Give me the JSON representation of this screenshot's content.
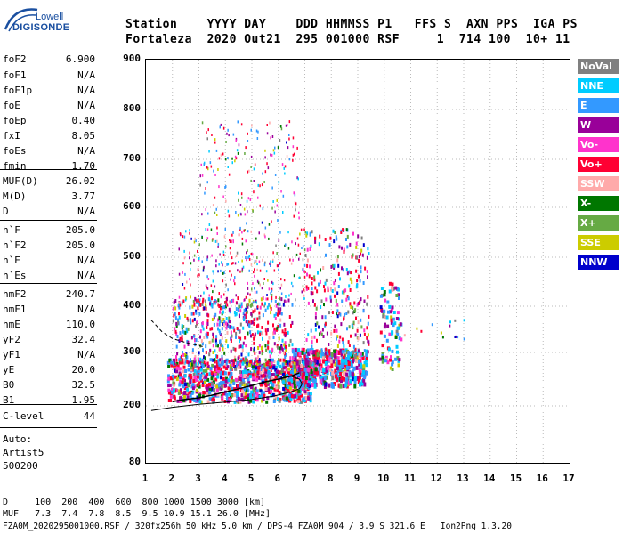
{
  "logo": {
    "top": "Lowell",
    "bottom": "DIGISONDE"
  },
  "header": {
    "labels": "Station    YYYY DAY    DDD HHMMSS P1   FFS S  AXN PPS  IGA PS",
    "values": "Fortaleza  2020 Out21  295 001000 RSF     1  714 100  10+ 11"
  },
  "params": [
    {
      "k": "foF2",
      "v": "6.900"
    },
    {
      "k": "foF1",
      "v": "N/A"
    },
    {
      "k": "foF1p",
      "v": "N/A"
    },
    {
      "k": "foE",
      "v": "N/A"
    },
    {
      "k": "foEp",
      "v": "0.40"
    },
    {
      "k": "fxI",
      "v": "8.05"
    },
    {
      "k": "foEs",
      "v": "N/A"
    },
    {
      "k": "fmin",
      "v": "1.70"
    },
    {
      "k": "MUF(D)",
      "v": "26.02"
    },
    {
      "k": "M(D)",
      "v": "3.77"
    },
    {
      "k": "D",
      "v": "N/A"
    },
    {
      "k": "h`F",
      "v": "205.0"
    },
    {
      "k": "h`F2",
      "v": "205.0"
    },
    {
      "k": "h`E",
      "v": "N/A"
    },
    {
      "k": "h`Es",
      "v": "N/A"
    },
    {
      "k": "hmF2",
      "v": "240.7"
    },
    {
      "k": "hmF1",
      "v": "N/A"
    },
    {
      "k": "hmE",
      "v": "110.0"
    },
    {
      "k": "yF2",
      "v": "32.4"
    },
    {
      "k": "yF1",
      "v": "N/A"
    },
    {
      "k": "yE",
      "v": "20.0"
    },
    {
      "k": "B0",
      "v": "32.5"
    },
    {
      "k": "B1",
      "v": "1.95"
    },
    {
      "k": "C-level",
      "v": "44"
    }
  ],
  "auto": {
    "line1": "Auto:",
    "line2": "Artist5",
    "line3": "500200"
  },
  "legend": [
    {
      "label": "NoVal",
      "color": "#808080"
    },
    {
      "label": "NNE",
      "color": "#00ccff"
    },
    {
      "label": "E",
      "color": "#3399ff"
    },
    {
      "label": "W",
      "color": "#990099"
    },
    {
      "label": "Vo-",
      "color": "#ff33cc"
    },
    {
      "label": "Vo+",
      "color": "#ff0033"
    },
    {
      "label": "SSW",
      "color": "#ffaaaa"
    },
    {
      "label": "X-",
      "color": "#007700"
    },
    {
      "label": "X+",
      "color": "#66aa44"
    },
    {
      "label": "SSE",
      "color": "#cccc00"
    },
    {
      "label": "NNW",
      "color": "#0000cc"
    }
  ],
  "footer": {
    "d_row": "D     100  200  400  600  800 1000 1500 3000 [km]",
    "muf_row": "MUF   7.3  7.4  7.8  8.5  9.5 10.9 15.1 26.0 [MHz]",
    "file_row": "FZA0M_2020295001000.RSF / 320fx256h 50 kHz 5.0 km / DPS-4 FZA0M 904 / 3.9 S 321.6 E   Ion2Png 1.3.20"
  },
  "chart_data": {
    "type": "scatter",
    "xlim": [
      1,
      17
    ],
    "ylim": [
      80,
      900
    ],
    "x_ticks": [
      "1",
      "2",
      "3",
      "4",
      "5",
      "6",
      "7",
      "8",
      "9",
      "10",
      "11",
      "12",
      "13",
      "14",
      "15",
      "16",
      "17"
    ],
    "y_ticks": [
      "900",
      "800",
      "700",
      "600",
      "500",
      "400",
      "300",
      "200",
      "80"
    ],
    "ylabel": "",
    "xlabel": "",
    "grid": true,
    "legend_position": "right",
    "trace_o_x": [
      2.0,
      2.5,
      3.0,
      3.5,
      4.0,
      4.5,
      5.0,
      5.5,
      6.0,
      6.5,
      6.8
    ],
    "trace_o_y": [
      208,
      212,
      215,
      220,
      226,
      232,
      238,
      245,
      250,
      256,
      262
    ],
    "profile_x": [
      1.2,
      2.0,
      3.0,
      4.0,
      5.0,
      5.8,
      6.4,
      6.8,
      6.9,
      6.8,
      6.5
    ],
    "profile_y": [
      190,
      197,
      203,
      207,
      212,
      218,
      225,
      232,
      241,
      250,
      255
    ],
    "dashed_x": [
      1.2,
      1.6,
      2.0,
      2.6,
      3.2
    ],
    "dashed_y": [
      370,
      345,
      330,
      320,
      312
    ]
  }
}
